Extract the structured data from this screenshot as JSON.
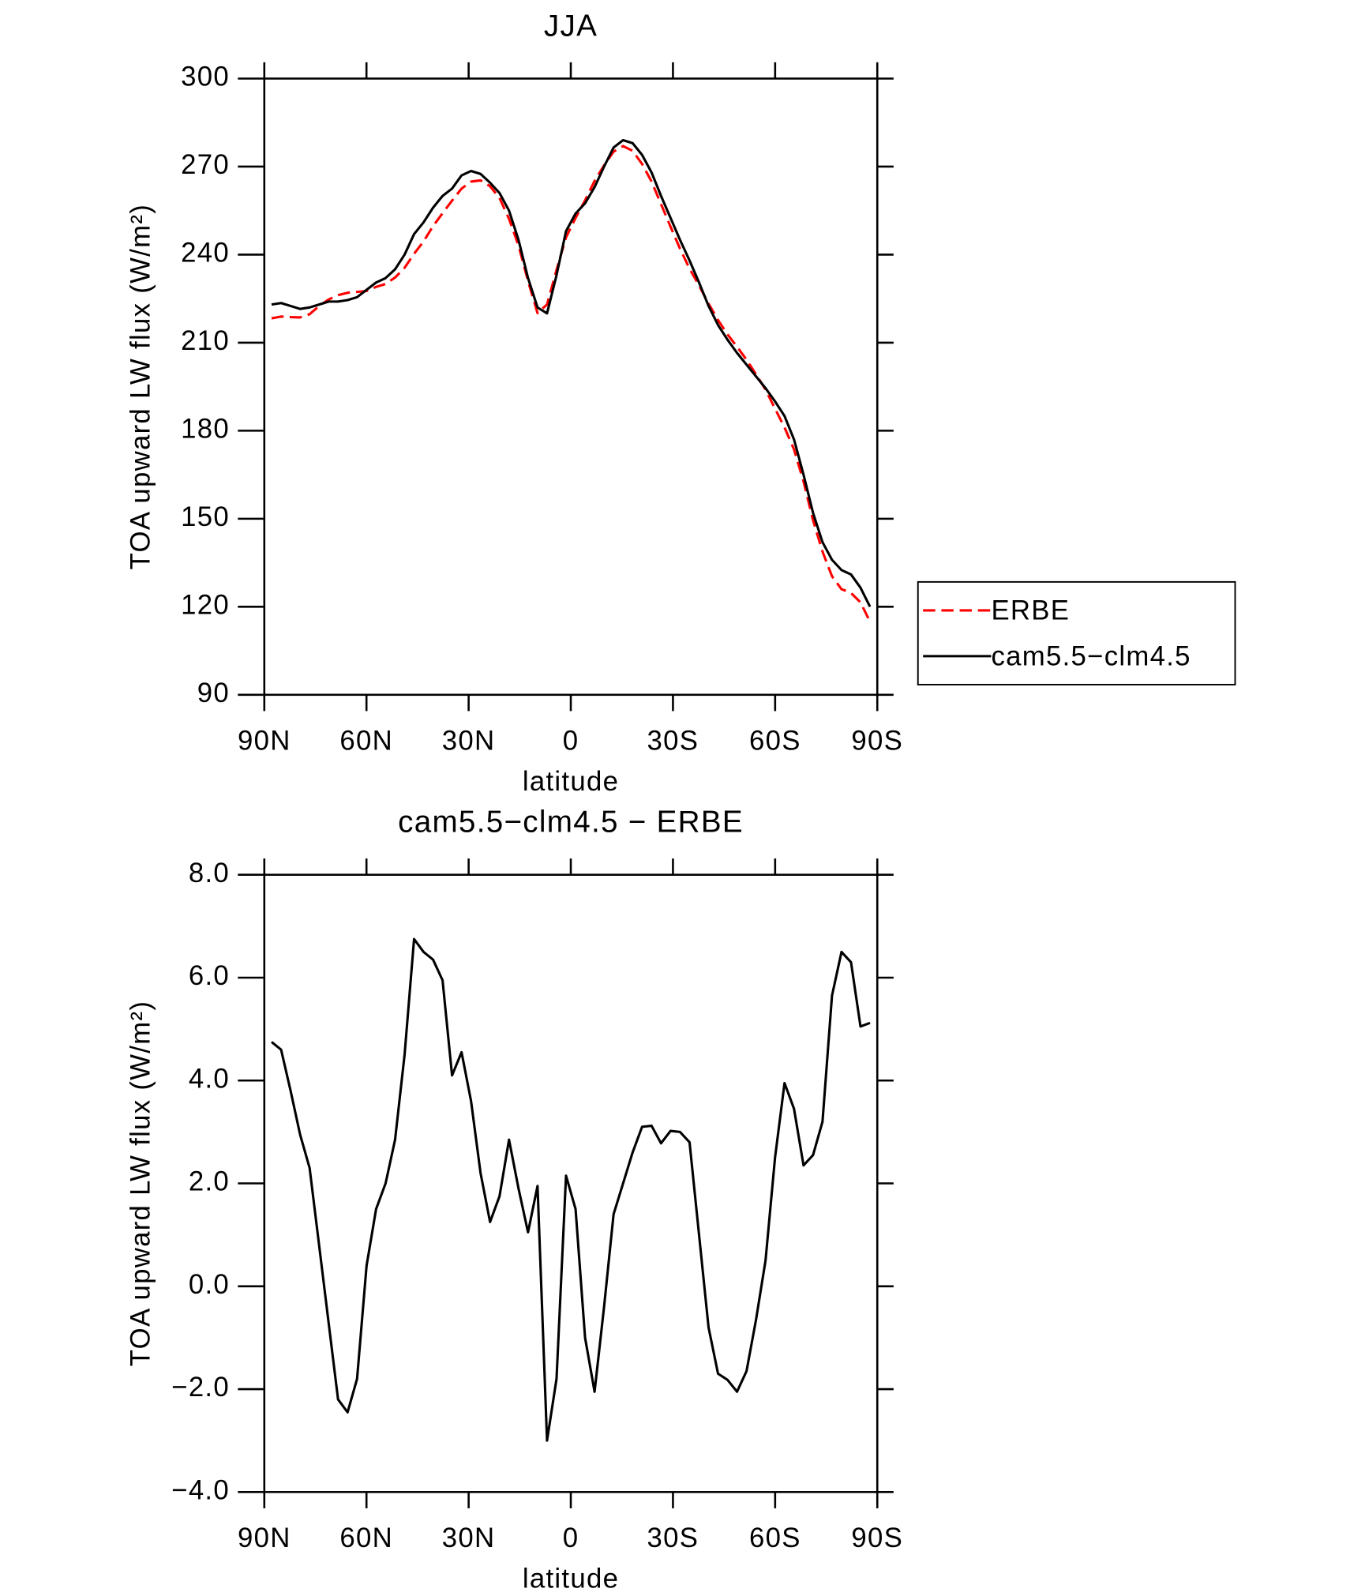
{
  "chart_data": [
    {
      "type": "line",
      "title": "JJA",
      "xlabel": "latitude",
      "ylabel": "TOA upward LW flux (W/m²)",
      "xlim": [
        90,
        -90
      ],
      "xticks": [
        {
          "value": 90,
          "label": "90N"
        },
        {
          "value": 60,
          "label": "60N"
        },
        {
          "value": 30,
          "label": "30N"
        },
        0,
        {
          "value": -30,
          "label": "30S"
        },
        {
          "value": -60,
          "label": "60S"
        },
        {
          "value": -90,
          "label": "90S"
        }
      ],
      "ylim": [
        90,
        300
      ],
      "yticks": [
        90,
        120,
        150,
        180,
        210,
        240,
        270,
        300
      ],
      "legend": "outside-right",
      "x": [
        87.86,
        85.07,
        82.28,
        79.49,
        76.7,
        73.91,
        71.13,
        68.34,
        65.55,
        62.76,
        59.97,
        57.18,
        54.39,
        51.6,
        48.81,
        46.02,
        43.24,
        40.45,
        37.66,
        34.87,
        32.08,
        29.29,
        26.5,
        23.71,
        20.93,
        18.14,
        15.35,
        12.56,
        9.77,
        6.98,
        4.19,
        1.4,
        -1.4,
        -4.19,
        -6.98,
        -9.77,
        -12.56,
        -15.35,
        -18.14,
        -20.93,
        -23.71,
        -26.5,
        -29.29,
        -32.08,
        -34.87,
        -37.66,
        -40.45,
        -43.24,
        -46.02,
        -48.81,
        -51.6,
        -54.39,
        -57.18,
        -59.97,
        -62.76,
        -65.55,
        -68.34,
        -71.13,
        -73.91,
        -76.7,
        -79.49,
        -82.28,
        -85.07,
        -87.86
      ],
      "series": [
        {
          "name": "ERBE",
          "color": "#ff0000",
          "line_style": "dashed",
          "values": [
            218.3,
            218.9,
            218.7,
            218.6,
            219.7,
            222.5,
            224.7,
            226.2,
            227.0,
            227.3,
            227.6,
            229.0,
            230.0,
            232.2,
            235.5,
            240.3,
            244.5,
            249.7,
            254.1,
            258.4,
            262.5,
            264.9,
            265.3,
            263.3,
            259.3,
            252.2,
            243.1,
            231.0,
            220.1,
            223.0,
            234.8,
            245.9,
            252.5,
            258.5,
            265.1,
            270.4,
            275.1,
            277.0,
            275.4,
            270.9,
            264.9,
            257.2,
            249.5,
            242.0,
            235.2,
            229.5,
            223.3,
            217.7,
            212.8,
            208.6,
            204.2,
            199.2,
            194.0,
            187.5,
            181.1,
            173.6,
            162.7,
            149.5,
            138.8,
            130.4,
            126.0,
            124.7,
            121.5,
            114.9
          ]
        },
        {
          "name": "cam5.5−clm4.5",
          "color": "#000000",
          "line_style": "solid",
          "values": [
            223.0,
            223.5,
            222.5,
            221.5,
            222.0,
            223.0,
            224.0,
            224.0,
            224.5,
            225.5,
            228.0,
            230.5,
            232.0,
            235.0,
            240.0,
            247.0,
            251.0,
            256.0,
            260.0,
            262.5,
            267.0,
            268.5,
            267.5,
            264.5,
            261.0,
            255.0,
            245.0,
            232.0,
            222.0,
            220.0,
            233.0,
            248.0,
            254.0,
            257.5,
            263.0,
            270.0,
            276.5,
            279.0,
            278.0,
            274.0,
            268.0,
            260.0,
            252.5,
            245.0,
            238.0,
            230.5,
            222.5,
            216.0,
            211.0,
            206.5,
            202.5,
            198.5,
            194.5,
            190.0,
            185.0,
            177.0,
            165.0,
            152.0,
            142.0,
            136.0,
            132.5,
            131.0,
            126.5,
            120.0
          ]
        }
      ]
    },
    {
      "type": "line",
      "title": "cam5.5−clm4.5 − ERBE",
      "xlabel": "latitude",
      "ylabel": "TOA upward LW flux (W/m²)",
      "xlim": [
        90,
        -90
      ],
      "xticks": [
        {
          "value": 90,
          "label": "90N"
        },
        {
          "value": 60,
          "label": "60N"
        },
        {
          "value": 30,
          "label": "30N"
        },
        0,
        {
          "value": -30,
          "label": "30S"
        },
        {
          "value": -60,
          "label": "60S"
        },
        {
          "value": -90,
          "label": "90S"
        }
      ],
      "ylim": [
        -4,
        8
      ],
      "yticks": [
        {
          "value": -4,
          "label": "−4.0"
        },
        {
          "value": -2,
          "label": "−2.0"
        },
        {
          "value": 0,
          "label": "0.0"
        },
        {
          "value": 2,
          "label": "2.0"
        },
        {
          "value": 4,
          "label": "4.0"
        },
        {
          "value": 6,
          "label": "6.0"
        },
        {
          "value": 8,
          "label": "8.0"
        }
      ],
      "x": [
        87.86,
        85.07,
        82.28,
        79.49,
        76.7,
        73.91,
        71.13,
        68.34,
        65.55,
        62.76,
        59.97,
        57.18,
        54.39,
        51.6,
        48.81,
        46.02,
        43.24,
        40.45,
        37.66,
        34.87,
        32.08,
        29.29,
        26.5,
        23.71,
        20.93,
        18.14,
        15.35,
        12.56,
        9.77,
        6.98,
        4.19,
        1.4,
        -1.4,
        -4.19,
        -6.98,
        -9.77,
        -12.56,
        -15.35,
        -18.14,
        -20.93,
        -23.71,
        -26.5,
        -29.29,
        -32.08,
        -34.87,
        -37.66,
        -40.45,
        -43.24,
        -46.02,
        -48.81,
        -51.6,
        -54.39,
        -57.18,
        -59.97,
        -62.76,
        -65.55,
        -68.34,
        -71.13,
        -73.91,
        -76.7,
        -79.49,
        -82.28,
        -85.07,
        -87.86
      ],
      "color": "#000000",
      "values": [
        4.75,
        4.6,
        3.8,
        2.95,
        2.3,
        0.8,
        -0.7,
        -2.2,
        -2.45,
        -1.8,
        0.4,
        1.5,
        2.0,
        2.85,
        4.5,
        6.75,
        6.5,
        6.35,
        5.95,
        4.1,
        4.55,
        3.6,
        2.2,
        1.25,
        1.75,
        2.85,
        1.9,
        1.05,
        1.95,
        -3.0,
        -1.8,
        2.15,
        1.5,
        -1.0,
        -2.05,
        -0.4,
        1.4,
        2.0,
        2.6,
        3.1,
        3.12,
        2.78,
        3.02,
        3.0,
        2.8,
        1.0,
        -0.8,
        -1.7,
        -1.82,
        -2.05,
        -1.65,
        -0.65,
        0.5,
        2.5,
        3.95,
        3.45,
        2.35,
        2.55,
        3.2,
        5.65,
        6.5,
        6.3,
        5.05,
        5.12
      ]
    }
  ]
}
